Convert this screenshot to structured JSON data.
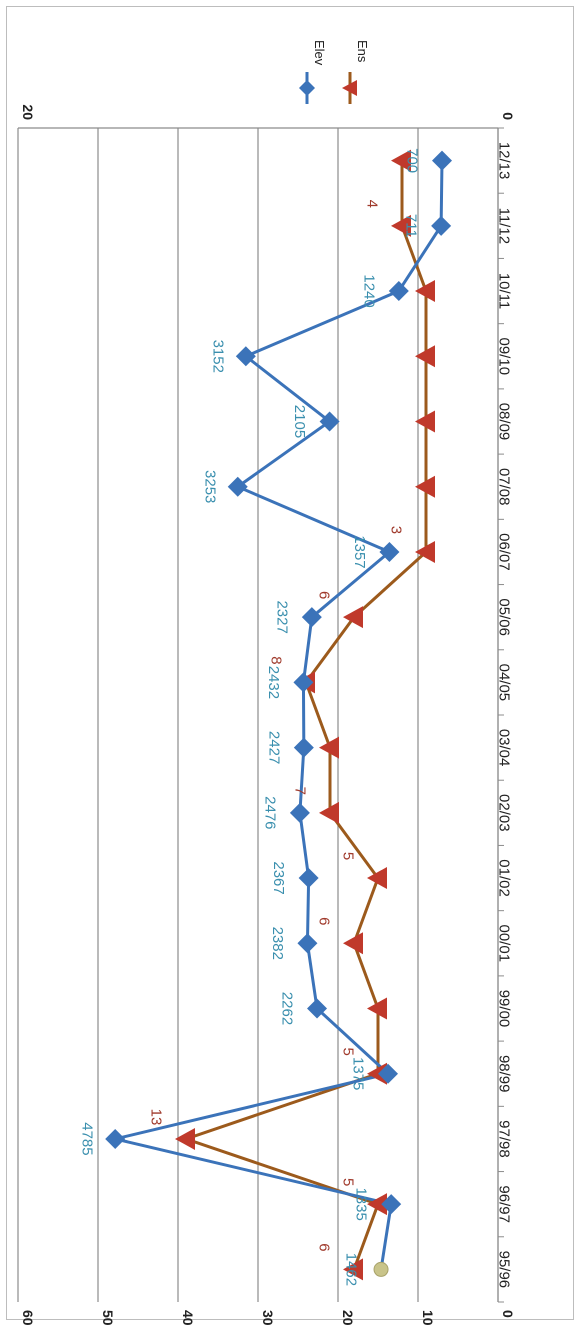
{
  "chart_data": {
    "type": "line",
    "orientation": "rotated-90-clockwise",
    "categories": [
      "95/96",
      "96/97",
      "97/98",
      "98/99",
      "99/00",
      "00/01",
      "01/02",
      "02/03",
      "03/04",
      "04/05",
      "05/06",
      "06/07",
      "07/08",
      "08/09",
      "09/10",
      "10/11",
      "11/12",
      "12/13"
    ],
    "series": [
      {
        "name": "Elev",
        "axis": "primary",
        "color": "#3b73b9",
        "marker": "diamond",
        "values": [
          1462,
          1335,
          4785,
          1375,
          2262,
          2382,
          2367,
          2476,
          2427,
          2432,
          2327,
          1357,
          3253,
          2105,
          3152,
          1240,
          711,
          700
        ],
        "labels": [
          "1462",
          "1335",
          "4785",
          "1375",
          "2262",
          "2382",
          "2367",
          "2476",
          "2427",
          "2432",
          "2327",
          "1357",
          "3253",
          "2105",
          "3152",
          "1240",
          "711",
          "700"
        ]
      },
      {
        "name": "Ens",
        "axis": "secondary",
        "color": "#c0392b",
        "line_color": "#9c5a1c",
        "marker": "triangle",
        "values": [
          6,
          5,
          13,
          5,
          5,
          6,
          5,
          7,
          7,
          8,
          6,
          3,
          3,
          3,
          3,
          3,
          4,
          4
        ],
        "labels": [
          "6",
          "5",
          "13",
          "5",
          "",
          "6",
          "5",
          "7",
          "",
          "8",
          "6",
          "3",
          "",
          "",
          "",
          "",
          "4",
          ""
        ]
      }
    ],
    "primary_axis": {
      "ylim": [
        0,
        6000
      ],
      "ticks": [
        "0",
        "1000",
        "2000",
        "3000",
        "4000",
        "5000",
        "6000"
      ]
    },
    "secondary_axis": {
      "ylim": [
        0,
        20
      ],
      "ticks": [
        "0",
        "20"
      ]
    },
    "grid": true,
    "legend": "right",
    "legend_entries": [
      "Elev",
      "Ens"
    ],
    "extra_marker_color": "#c9c48a"
  }
}
